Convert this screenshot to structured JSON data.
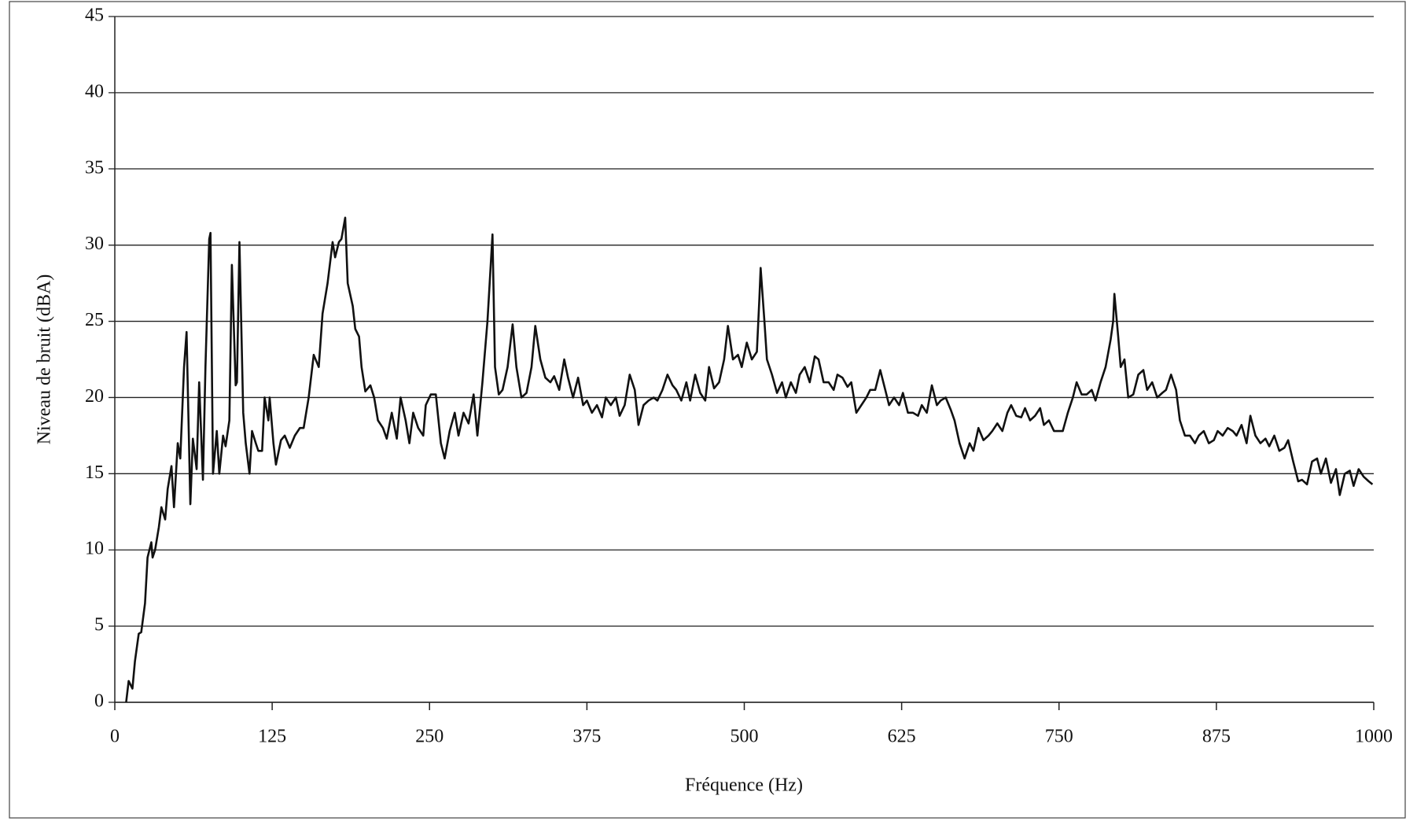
{
  "chart_data": {
    "type": "line",
    "x_label": "Fréquence (Hz)",
    "y_label": "Niveau de bruit (dBA)",
    "color": "#111111",
    "grid": true,
    "xlim": [
      0,
      1000
    ],
    "xticks": [
      0,
      125,
      250,
      375,
      500,
      625,
      750,
      875,
      1000
    ],
    "ylim": [
      0,
      45
    ],
    "yticks": [
      0,
      5,
      10,
      15,
      20,
      25,
      30,
      35,
      40,
      45
    ],
    "x": [
      9,
      11,
      14,
      16,
      19,
      21,
      24,
      26,
      29,
      30,
      32,
      35,
      37,
      40,
      42,
      45,
      47,
      50,
      52,
      55,
      57,
      60,
      62,
      65,
      67,
      70,
      72,
      75,
      76,
      78,
      81,
      83,
      86,
      88,
      91,
      93,
      96,
      97,
      99,
      102,
      104,
      107,
      109,
      112,
      114,
      117,
      119,
      122,
      123,
      126,
      128,
      132,
      135,
      139,
      143,
      147,
      150,
      154,
      158,
      162,
      165,
      169,
      173,
      175,
      178,
      180,
      183,
      185,
      189,
      191,
      194,
      196,
      199,
      203,
      206,
      209,
      213,
      216,
      220,
      224,
      227,
      231,
      234,
      237,
      241,
      245,
      247,
      251,
      255,
      259,
      262,
      266,
      270,
      273,
      277,
      281,
      285,
      288,
      292,
      296,
      300,
      302,
      305,
      308,
      312,
      316,
      319,
      323,
      327,
      331,
      334,
      338,
      342,
      346,
      349,
      353,
      357,
      360,
      364,
      368,
      372,
      375,
      379,
      383,
      387,
      390,
      394,
      398,
      401,
      405,
      409,
      413,
      416,
      420,
      424,
      428,
      431,
      435,
      439,
      443,
      446,
      450,
      454,
      457,
      461,
      465,
      469,
      472,
      476,
      480,
      484,
      487,
      491,
      495,
      498,
      502,
      506,
      510,
      512,
      513,
      516,
      518,
      522,
      526,
      530,
      533,
      537,
      541,
      544,
      548,
      552,
      556,
      559,
      563,
      567,
      571,
      574,
      578,
      582,
      585,
      589,
      593,
      597,
      600,
      604,
      608,
      612,
      615,
      619,
      623,
      626,
      630,
      634,
      638,
      641,
      645,
      649,
      653,
      656,
      660,
      664,
      667,
      671,
      675,
      679,
      682,
      686,
      690,
      694,
      697,
      701,
      705,
      709,
      712,
      716,
      720,
      723,
      727,
      731,
      735,
      738,
      742,
      746,
      750,
      753,
      757,
      761,
      764,
      768,
      772,
      776,
      779,
      783,
      787,
      791,
      793,
      794,
      797,
      799,
      802,
      805,
      809,
      813,
      817,
      820,
      824,
      828,
      832,
      835,
      839,
      843,
      846,
      850,
      854,
      858,
      861,
      865,
      869,
      873,
      876,
      880,
      884,
      888,
      891,
      895,
      899,
      902,
      906,
      910,
      914,
      917,
      921,
      925,
      929,
      932,
      936,
      940,
      943,
      947,
      951,
      955,
      958,
      962,
      966,
      970,
      973,
      977,
      981,
      984,
      988,
      992,
      996,
      999
    ],
    "values": [
      0,
      1.4,
      0.9,
      2.7,
      4.5,
      4.6,
      6.5,
      9.5,
      10.5,
      9.5,
      10,
      11.5,
      12.8,
      12,
      14,
      15.5,
      12.8,
      17,
      16,
      22,
      24.3,
      13,
      17.3,
      15.3,
      21,
      14.6,
      22,
      30.4,
      30.8,
      15,
      17.8,
      15,
      17.5,
      16.8,
      18.5,
      28.7,
      20.8,
      21,
      30.2,
      19,
      17,
      15,
      17.8,
      17,
      16.5,
      16.5,
      20,
      18.5,
      20,
      17,
      15.6,
      17.2,
      17.5,
      16.7,
      17.5,
      18,
      18,
      20,
      22.8,
      22,
      25.5,
      27.5,
      30.2,
      29.2,
      30.2,
      30.4,
      31.8,
      27.5,
      26,
      24.5,
      24,
      22,
      20.4,
      20.8,
      20,
      18.5,
      18,
      17.3,
      19,
      17.3,
      20,
      18.5,
      17,
      19,
      18,
      17.5,
      19.5,
      20.2,
      20.2,
      17,
      16,
      17.8,
      19,
      17.5,
      19,
      18.3,
      20.2,
      17.5,
      21,
      25,
      30.7,
      22,
      20.2,
      20.5,
      22,
      24.8,
      22,
      20,
      20.3,
      22,
      24.7,
      22.5,
      21.3,
      21,
      21.4,
      20.5,
      22.5,
      21.3,
      20,
      21.3,
      19.5,
      19.8,
      19,
      19.5,
      18.7,
      20,
      19.5,
      20,
      18.8,
      19.5,
      21.5,
      20.5,
      18.2,
      19.5,
      19.8,
      20,
      19.8,
      20.5,
      21.5,
      20.8,
      20.5,
      19.8,
      21,
      19.8,
      21.5,
      20.3,
      19.8,
      22,
      20.6,
      21,
      22.5,
      24.7,
      22.5,
      22.8,
      22,
      23.6,
      22.5,
      23,
      26.5,
      28.5,
      25,
      22.5,
      21.5,
      20.3,
      21,
      20,
      21,
      20.3,
      21.5,
      22,
      21,
      22.7,
      22.5,
      21,
      21,
      20.5,
      21.5,
      21.3,
      20.7,
      21,
      19,
      19.5,
      20,
      20.5,
      20.5,
      21.8,
      20.5,
      19.5,
      20,
      19.5,
      20.3,
      19,
      19,
      18.8,
      19.5,
      19,
      20.8,
      19.5,
      19.8,
      20,
      19.2,
      18.5,
      17,
      16,
      17,
      16.5,
      18,
      17.2,
      17.5,
      17.8,
      18.3,
      17.8,
      19,
      19.5,
      18.8,
      18.7,
      19.3,
      18.5,
      18.8,
      19.3,
      18.2,
      18.5,
      17.8,
      17.8,
      17.8,
      19,
      20,
      21,
      20.2,
      20.2,
      20.5,
      19.8,
      21,
      22,
      23.8,
      25,
      26.8,
      24,
      22,
      22.5,
      20,
      20.2,
      21.5,
      21.8,
      20.5,
      21,
      20,
      20.3,
      20.5,
      21.5,
      20.5,
      18.5,
      17.5,
      17.5,
      17,
      17.5,
      17.8,
      17,
      17.2,
      17.8,
      17.5,
      18,
      17.8,
      17.5,
      18.2,
      17,
      18.8,
      17.5,
      17,
      17.3,
      16.8,
      17.5,
      16.5,
      16.7,
      17.2,
      15.8,
      14.5,
      14.6,
      14.3,
      15.8,
      16,
      15,
      16,
      14.4,
      15.3,
      13.6,
      15,
      15.2,
      14.2,
      15.3,
      14.8,
      14.5,
      14.3
    ]
  }
}
